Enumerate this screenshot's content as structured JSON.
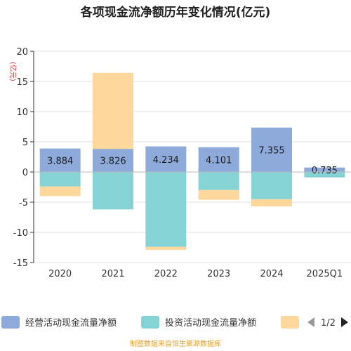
{
  "chart_data": {
    "type": "bar",
    "stacked": true,
    "title": "各项现金流净额历年变化情况(亿元)",
    "ylabel": "(亿元)",
    "categories": [
      "2020",
      "2021",
      "2022",
      "2023",
      "2024",
      "2025Q1"
    ],
    "ylim": [
      -15,
      20
    ],
    "yticks": [
      20,
      15,
      10,
      5,
      0,
      -5,
      -10,
      -15
    ],
    "grid": true,
    "legend_position": "bottom",
    "series": [
      {
        "name": "经营活动现金流量净额",
        "color": "#8eaadb",
        "values": [
          3.884,
          3.826,
          4.234,
          4.101,
          7.355,
          0.735
        ],
        "labels": [
          "3.884",
          "3.826",
          "4.234",
          "4.101",
          "7.355",
          "0.735"
        ]
      },
      {
        "name": "投资活动现金流量净额",
        "color": "#86d3d6",
        "values": [
          -2.4,
          -6.2,
          -12.4,
          -3.0,
          -4.5,
          -0.9
        ]
      },
      {
        "name": "",
        "color": "#fdd79b",
        "values": [
          -1.6,
          12.6,
          -0.5,
          -1.6,
          -1.2,
          0
        ]
      }
    ]
  },
  "legend": {
    "pager": "1/2"
  },
  "source": "制图数据来自恒生聚源数据库"
}
